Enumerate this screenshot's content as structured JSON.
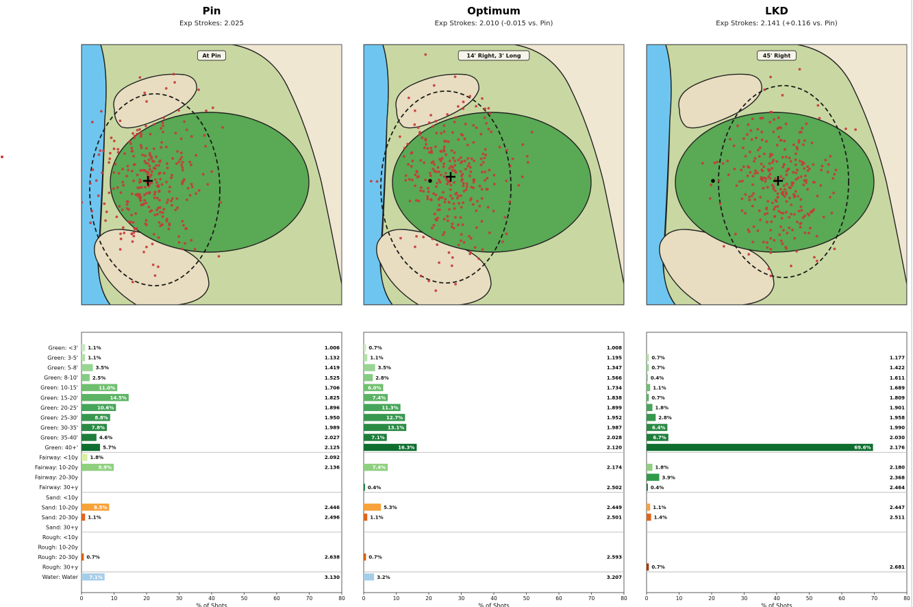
{
  "chart_data": {
    "type": "bar",
    "xlabel": "% of Shots",
    "xlim": [
      0,
      80
    ],
    "xticks": [
      0,
      10,
      20,
      30,
      40,
      50,
      60,
      70,
      80
    ],
    "categories": [
      "Green: <3'",
      "Green: 3-5'",
      "Green: 5-8'",
      "Green: 8-10'",
      "Green: 10-15'",
      "Green: 15-20'",
      "Green: 20-25'",
      "Green: 25-30'",
      "Green: 30-35'",
      "Green: 35-40'",
      "Green: 40+'",
      "Fairway: <10y",
      "Fairway: 10-20y",
      "Fairway: 20-30y",
      "Fairway: 30+y",
      "Sand: <10y",
      "Sand: 10-20y",
      "Sand: 20-30y",
      "Sand: 30+y",
      "Rough: <10y",
      "Rough: 10-20y",
      "Rough: 20-30y",
      "Rough: 30+y",
      "Water: Water"
    ],
    "colors": [
      "#c7e9c0",
      "#b3e0a6",
      "#98d594",
      "#86cc85",
      "#6fbf6f",
      "#5cb364",
      "#46a55a",
      "#37974e",
      "#2a8a44",
      "#1e7d3b",
      "#0f6e2f",
      "#d9f0a3",
      "#8ed07f",
      "#2f9a4a",
      "#1a7a3a",
      "#fec44f",
      "#f7a23a",
      "#e0651c",
      "#b8470f",
      "#e6550d",
      "#d94801",
      "#d95f0e",
      "#a63603",
      "#a6cde8"
    ],
    "group_separators_after": [
      10,
      14,
      18,
      22
    ],
    "panels": [
      {
        "title": "Pin",
        "subtitle": "Exp Strokes: 2.025",
        "badge": "At Pin",
        "values": [
          1.1,
          1.1,
          3.5,
          2.5,
          11.0,
          14.5,
          10.6,
          8.8,
          7.8,
          4.6,
          5.7,
          1.8,
          9.9,
          null,
          null,
          null,
          8.5,
          1.1,
          null,
          null,
          null,
          0.7,
          null,
          7.1
        ],
        "labels": [
          "1.1%",
          "1.1%",
          "3.5%",
          "2.5%",
          "11.0%",
          "14.5%",
          "10.6%",
          "8.8%",
          "7.8%",
          "4.6%",
          "5.7%",
          "1.8%",
          "9.9%",
          "",
          "",
          "",
          "8.5%",
          "1.1%",
          "",
          "",
          "",
          "0.7%",
          "",
          "7.1%"
        ],
        "strokes": [
          "1.006",
          "1.132",
          "1.419",
          "1.525",
          "1.706",
          "1.825",
          "1.896",
          "1.950",
          "1.989",
          "2.027",
          "2.125",
          "2.092",
          "2.136",
          "",
          "",
          "",
          "2.446",
          "2.496",
          "",
          "",
          "",
          "2.638",
          "",
          "3.130"
        ]
      },
      {
        "title": "Optimum",
        "subtitle": "Exp Strokes: 2.010  (-0.015 vs. Pin)",
        "badge": "14' Right, 3' Long",
        "values": [
          0.7,
          1.1,
          3.5,
          2.8,
          6.0,
          7.4,
          11.3,
          12.7,
          13.1,
          7.1,
          16.3,
          null,
          7.4,
          null,
          0.4,
          null,
          5.3,
          1.1,
          null,
          null,
          null,
          0.7,
          null,
          3.2
        ],
        "labels": [
          "0.7%",
          "1.1%",
          "3.5%",
          "2.8%",
          "6.0%",
          "7.4%",
          "11.3%",
          "12.7%",
          "13.1%",
          "7.1%",
          "16.3%",
          "",
          "7.4%",
          "",
          "0.4%",
          "",
          "5.3%",
          "1.1%",
          "",
          "",
          "",
          "0.7%",
          "",
          "3.2%"
        ],
        "strokes": [
          "1.008",
          "1.195",
          "1.347",
          "1.566",
          "1.734",
          "1.838",
          "1.899",
          "1.952",
          "1.987",
          "2.028",
          "2.120",
          "",
          "2.174",
          "",
          "2.502",
          "",
          "2.449",
          "2.501",
          "",
          "",
          "",
          "2.593",
          "",
          "3.207"
        ]
      },
      {
        "title": "LKD",
        "subtitle": "Exp Strokes: 2.141  (+0.116 vs. Pin)",
        "badge": "45' Right",
        "values": [
          null,
          0.7,
          0.7,
          0.4,
          1.1,
          0.7,
          1.8,
          2.8,
          6.4,
          6.7,
          69.6,
          null,
          1.8,
          3.9,
          0.4,
          null,
          1.1,
          1.4,
          null,
          null,
          null,
          null,
          0.7,
          null
        ],
        "labels": [
          "",
          "0.7%",
          "0.7%",
          "0.4%",
          "1.1%",
          "0.7%",
          "1.8%",
          "2.8%",
          "6.4%",
          "6.7%",
          "69.6%",
          "",
          "1.8%",
          "3.9%",
          "0.4%",
          "",
          "1.1%",
          "1.4%",
          "",
          "",
          "",
          "",
          "0.7%",
          ""
        ],
        "strokes": [
          "",
          "1.177",
          "1.422",
          "1.611",
          "1.689",
          "1.809",
          "1.901",
          "1.958",
          "1.990",
          "2.030",
          "2.176",
          "",
          "2.180",
          "2.368",
          "2.464",
          "",
          "2.447",
          "2.511",
          "",
          "",
          "",
          "",
          "2.681",
          ""
        ]
      }
    ]
  }
}
